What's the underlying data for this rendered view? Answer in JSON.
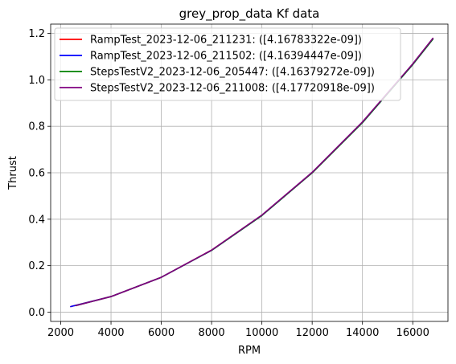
{
  "chart_data": {
    "type": "line",
    "title": "grey_prop_data Kf data",
    "xlabel": "RPM",
    "ylabel": "Thrust",
    "xlim": [
      1600,
      17400
    ],
    "ylim": [
      -0.04,
      1.24
    ],
    "xticks": [
      2000,
      4000,
      6000,
      8000,
      10000,
      12000,
      14000,
      16000
    ],
    "xtick_labels": [
      "2000",
      "4000",
      "6000",
      "8000",
      "10000",
      "12000",
      "14000",
      "16000"
    ],
    "yticks": [
      0.0,
      0.2,
      0.4,
      0.6,
      0.8,
      1.0,
      1.2
    ],
    "ytick_labels": [
      "0.0",
      "0.2",
      "0.4",
      "0.6",
      "0.8",
      "1.0",
      "1.2"
    ],
    "grid": true,
    "legend_position": "upper-left",
    "series": [
      {
        "name": "RampTest_2023-12-06_211231: ([4.16783322e-09])",
        "color": "#ff0000",
        "x": [
          2400,
          4000,
          6000,
          8000,
          10000,
          12000,
          14000,
          16000,
          16800
        ],
        "y": [
          0.024,
          0.067,
          0.15,
          0.267,
          0.417,
          0.6,
          0.817,
          1.067,
          1.176
        ]
      },
      {
        "name": "RampTest_2023-12-06_211502: ([4.16394447e-09])",
        "color": "#0000ff",
        "x": [
          2400,
          4000,
          6000,
          8000,
          10000,
          12000,
          14000,
          16000,
          16800
        ],
        "y": [
          0.024,
          0.067,
          0.15,
          0.266,
          0.416,
          0.6,
          0.816,
          1.066,
          1.175
        ]
      },
      {
        "name": "StepsTestV2_2023-12-06_205447: ([4.16379272e-09])",
        "color": "#008000",
        "x": [
          2600,
          4000,
          6000,
          8000,
          10000,
          12000,
          14000,
          16000,
          16800
        ],
        "y": [
          0.028,
          0.067,
          0.15,
          0.266,
          0.416,
          0.6,
          0.816,
          1.066,
          1.175
        ]
      },
      {
        "name": "StepsTestV2_2023-12-06_211008: ([4.17720918e-09])",
        "color": "#800080",
        "x": [
          2600,
          4000,
          6000,
          8000,
          10000,
          12000,
          14000,
          16000,
          16800
        ],
        "y": [
          0.028,
          0.067,
          0.15,
          0.267,
          0.418,
          0.602,
          0.819,
          1.069,
          1.179
        ]
      }
    ]
  }
}
